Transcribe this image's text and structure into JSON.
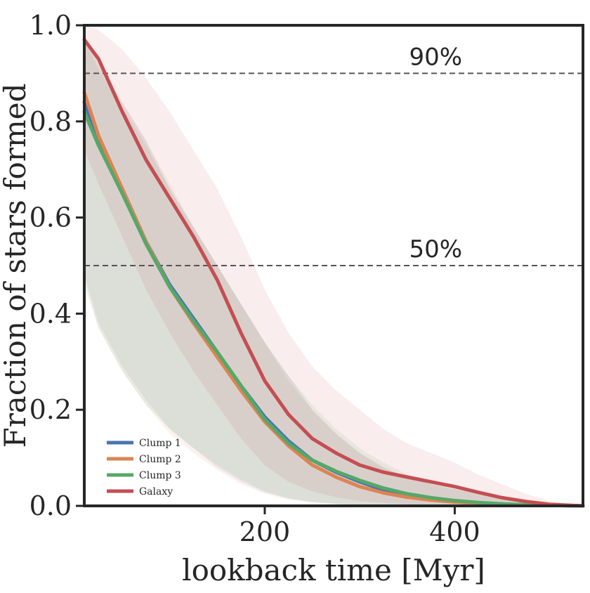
{
  "chart_data": {
    "type": "line",
    "title": "",
    "xlabel": "lookback time [Myr]",
    "ylabel": "Fraction of stars formed",
    "xlim": [
      10,
      535
    ],
    "ylim": [
      0.0,
      1.0
    ],
    "xticks": [
      200,
      400
    ],
    "yticks": [
      0.0,
      0.2,
      0.4,
      0.6,
      0.8,
      1.0
    ],
    "xtick_labels": [
      "200",
      "400"
    ],
    "ytick_labels": [
      "0.0",
      "0.2",
      "0.4",
      "0.6",
      "0.8",
      "1.0"
    ],
    "grid": false,
    "legend_position": "lower-left",
    "hlines": [
      {
        "y": 0.9,
        "label": "90%",
        "style": "dashed",
        "color": "#555555"
      },
      {
        "y": 0.5,
        "label": "50%",
        "style": "dashed",
        "color": "#555555"
      }
    ],
    "x": [
      10,
      25,
      50,
      75,
      100,
      125,
      150,
      175,
      200,
      225,
      250,
      275,
      300,
      325,
      350,
      375,
      400,
      425,
      450,
      475,
      500,
      535
    ],
    "series": [
      {
        "name": "Clump 1",
        "color": "#4c72b0",
        "values": [
          0.84,
          0.76,
          0.66,
          0.55,
          0.46,
          0.39,
          0.32,
          0.25,
          0.185,
          0.135,
          0.095,
          0.07,
          0.05,
          0.033,
          0.022,
          0.015,
          0.01,
          0.006,
          0.004,
          0.002,
          0.001,
          0.0
        ],
        "band_lower": [
          0.48,
          0.38,
          0.29,
          0.22,
          0.16,
          0.12,
          0.08,
          0.05,
          0.028,
          0.015,
          0.008,
          0.004,
          0.002,
          0.001,
          0.0,
          0.0,
          0.0,
          0.0,
          0.0,
          0.0,
          0.0,
          0.0
        ],
        "band_upper": [
          0.97,
          0.92,
          0.84,
          0.76,
          0.66,
          0.58,
          0.5,
          0.42,
          0.34,
          0.27,
          0.2,
          0.15,
          0.11,
          0.08,
          0.06,
          0.045,
          0.035,
          0.025,
          0.015,
          0.008,
          0.003,
          0.0
        ]
      },
      {
        "name": "Clump 2",
        "color": "#dd8452",
        "values": [
          0.86,
          0.77,
          0.66,
          0.55,
          0.455,
          0.38,
          0.31,
          0.24,
          0.175,
          0.125,
          0.085,
          0.06,
          0.04,
          0.027,
          0.018,
          0.012,
          0.008,
          0.005,
          0.003,
          0.002,
          0.001,
          0.0
        ],
        "band_lower": [
          0.47,
          0.37,
          0.28,
          0.21,
          0.15,
          0.11,
          0.075,
          0.045,
          0.025,
          0.013,
          0.007,
          0.003,
          0.001,
          0.0,
          0.0,
          0.0,
          0.0,
          0.0,
          0.0,
          0.0,
          0.0,
          0.0
        ],
        "band_upper": [
          0.98,
          0.92,
          0.84,
          0.76,
          0.67,
          0.58,
          0.5,
          0.42,
          0.34,
          0.26,
          0.2,
          0.15,
          0.11,
          0.08,
          0.06,
          0.045,
          0.035,
          0.025,
          0.015,
          0.008,
          0.003,
          0.0
        ]
      },
      {
        "name": "Clump 3",
        "color": "#55a868",
        "values": [
          0.82,
          0.75,
          0.65,
          0.545,
          0.455,
          0.385,
          0.32,
          0.25,
          0.18,
          0.13,
          0.095,
          0.072,
          0.053,
          0.037,
          0.025,
          0.017,
          0.011,
          0.007,
          0.004,
          0.002,
          0.001,
          0.0
        ],
        "band_lower": [
          0.46,
          0.37,
          0.28,
          0.21,
          0.16,
          0.12,
          0.085,
          0.055,
          0.03,
          0.016,
          0.008,
          0.004,
          0.002,
          0.001,
          0.0,
          0.0,
          0.0,
          0.0,
          0.0,
          0.0,
          0.0,
          0.0
        ],
        "band_upper": [
          0.97,
          0.91,
          0.83,
          0.75,
          0.66,
          0.58,
          0.5,
          0.42,
          0.34,
          0.27,
          0.21,
          0.16,
          0.12,
          0.09,
          0.065,
          0.05,
          0.036,
          0.025,
          0.015,
          0.008,
          0.003,
          0.0
        ]
      },
      {
        "name": "Galaxy",
        "color": "#c44e52",
        "values": [
          0.97,
          0.93,
          0.82,
          0.72,
          0.64,
          0.56,
          0.47,
          0.36,
          0.26,
          0.19,
          0.14,
          0.11,
          0.085,
          0.07,
          0.06,
          0.05,
          0.04,
          0.028,
          0.017,
          0.009,
          0.003,
          0.0
        ],
        "band_lower": [
          0.74,
          0.67,
          0.56,
          0.45,
          0.36,
          0.28,
          0.21,
          0.14,
          0.085,
          0.05,
          0.03,
          0.018,
          0.01,
          0.006,
          0.003,
          0.002,
          0.001,
          0.0,
          0.0,
          0.0,
          0.0,
          0.0
        ],
        "band_upper": [
          1.0,
          0.99,
          0.95,
          0.89,
          0.82,
          0.74,
          0.66,
          0.56,
          0.45,
          0.36,
          0.29,
          0.24,
          0.2,
          0.16,
          0.13,
          0.11,
          0.09,
          0.065,
          0.045,
          0.025,
          0.01,
          0.0
        ]
      }
    ]
  }
}
